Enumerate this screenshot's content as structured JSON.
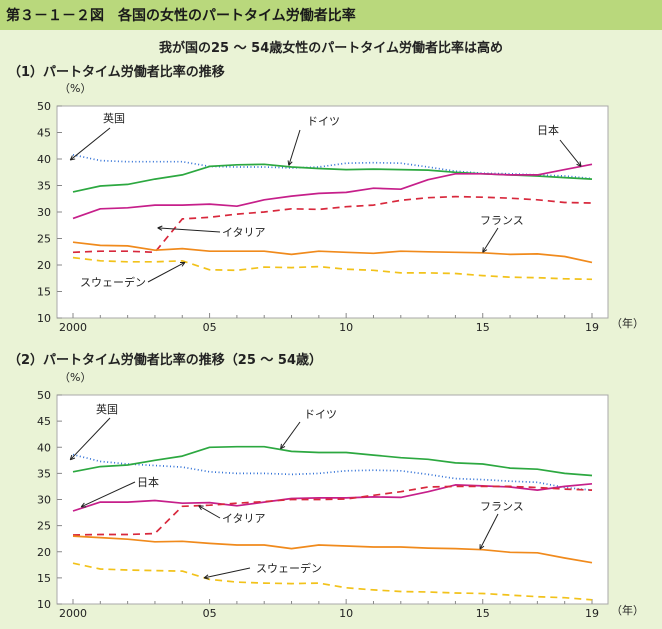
{
  "figure_title": "第３－１－２図　各国の女性のパートタイム労働者比率",
  "subtitle": "我が国の25 ～ 54歳女性のパートタイム労働者比率は高め",
  "chart_data": [
    {
      "type": "line",
      "heading": "（1）パートタイム労働者比率の推移",
      "ylabel": "（%）",
      "xlabel": "（年）",
      "ylim": [
        10,
        50
      ],
      "yticks": [
        "10",
        "15",
        "20",
        "25",
        "30",
        "35",
        "40",
        "45",
        "50"
      ],
      "xticks": [
        {
          "x": 2000,
          "label": "2000"
        },
        {
          "x": 2005,
          "label": "05"
        },
        {
          "x": 2010,
          "label": "10"
        },
        {
          "x": 2015,
          "label": "15"
        },
        {
          "x": 2019,
          "label": "19"
        }
      ],
      "x": [
        2000,
        2001,
        2002,
        2003,
        2004,
        2005,
        2006,
        2007,
        2008,
        2009,
        2010,
        2011,
        2012,
        2013,
        2014,
        2015,
        2016,
        2017,
        2018,
        2019
      ],
      "series": [
        {
          "name": "英国",
          "color": "#2e6fd6",
          "dash": "1,2.5",
          "values": [
            40.8,
            39.7,
            39.5,
            39.5,
            39.5,
            38.6,
            38.5,
            38.5,
            38.3,
            38.5,
            39.2,
            39.3,
            39.2,
            38.5,
            37.7,
            37.3,
            37.2,
            37.0,
            36.8,
            36.3
          ]
        },
        {
          "name": "ドイツ",
          "color": "#2ca840",
          "dash": "",
          "values": [
            33.8,
            34.9,
            35.2,
            36.2,
            37.0,
            38.6,
            38.9,
            39.0,
            38.5,
            38.2,
            38.0,
            38.1,
            38.0,
            37.9,
            37.5,
            37.2,
            37.0,
            36.8,
            36.5,
            36.2
          ]
        },
        {
          "name": "日本",
          "color": "#c61f8a",
          "dash": "",
          "values": [
            28.8,
            30.6,
            30.8,
            31.3,
            31.3,
            31.5,
            31.1,
            32.3,
            33.0,
            33.5,
            33.7,
            34.5,
            34.3,
            36.1,
            37.2,
            37.2,
            37.0,
            37.0,
            38.0,
            39.0
          ]
        },
        {
          "name": "イタリア",
          "color": "#d8283c",
          "dash": "7,5",
          "values": [
            22.4,
            22.6,
            22.6,
            22.4,
            28.7,
            29.0,
            29.6,
            30.0,
            30.6,
            30.5,
            31.0,
            31.3,
            32.2,
            32.7,
            32.9,
            32.8,
            32.6,
            32.3,
            31.8,
            31.7
          ]
        },
        {
          "name": "フランス",
          "color": "#f08a1c",
          "dash": "",
          "values": [
            24.3,
            23.7,
            23.6,
            22.8,
            23.1,
            22.6,
            22.6,
            22.6,
            22.0,
            22.6,
            22.4,
            22.2,
            22.6,
            22.5,
            22.4,
            22.3,
            22.0,
            22.1,
            21.6,
            20.5
          ]
        },
        {
          "name": "スウェーデン",
          "color": "#f2c21a",
          "dash": "7,5",
          "values": [
            21.4,
            20.8,
            20.6,
            20.6,
            20.8,
            19.1,
            19.0,
            19.6,
            19.5,
            19.7,
            19.2,
            19.0,
            18.5,
            18.5,
            18.4,
            18.0,
            17.7,
            17.6,
            17.4,
            17.3
          ]
        }
      ]
    },
    {
      "type": "line",
      "heading": "（2）パートタイム労働者比率の推移（25 ～ 54歳）",
      "ylabel": "（%）",
      "xlabel": "（年）",
      "ylim": [
        10,
        50
      ],
      "yticks": [
        "10",
        "15",
        "20",
        "25",
        "30",
        "35",
        "40",
        "45",
        "50"
      ],
      "xticks": [
        {
          "x": 2000,
          "label": "2000"
        },
        {
          "x": 2005,
          "label": "05"
        },
        {
          "x": 2010,
          "label": "10"
        },
        {
          "x": 2015,
          "label": "15"
        },
        {
          "x": 2019,
          "label": "19"
        }
      ],
      "x": [
        2000,
        2001,
        2002,
        2003,
        2004,
        2005,
        2006,
        2007,
        2008,
        2009,
        2010,
        2011,
        2012,
        2013,
        2014,
        2015,
        2016,
        2017,
        2018,
        2019
      ],
      "series": [
        {
          "name": "英国",
          "color": "#2e6fd6",
          "dash": "1,2.5",
          "values": [
            38.6,
            37.3,
            36.8,
            36.5,
            36.2,
            35.3,
            35.0,
            35.0,
            34.8,
            35.0,
            35.5,
            35.6,
            35.5,
            34.8,
            34.0,
            33.8,
            33.5,
            33.3,
            32.3,
            31.8
          ]
        },
        {
          "name": "ドイツ",
          "color": "#2ca840",
          "dash": "",
          "values": [
            35.3,
            36.3,
            36.6,
            37.5,
            38.3,
            40.0,
            40.1,
            40.1,
            39.2,
            39.0,
            39.0,
            38.5,
            38.0,
            37.7,
            37.0,
            36.8,
            36.0,
            35.8,
            35.0,
            34.6
          ]
        },
        {
          "name": "日本",
          "color": "#c61f8a",
          "dash": "",
          "values": [
            27.8,
            29.5,
            29.5,
            29.8,
            29.3,
            29.4,
            28.8,
            29.5,
            30.2,
            30.3,
            30.3,
            30.5,
            30.4,
            31.5,
            32.8,
            32.6,
            32.4,
            31.8,
            32.5,
            33.0
          ]
        },
        {
          "name": "イタリア",
          "color": "#d8283c",
          "dash": "7,5",
          "values": [
            23.2,
            23.3,
            23.3,
            23.5,
            28.7,
            28.9,
            29.3,
            29.6,
            30.0,
            30.0,
            30.1,
            30.8,
            31.5,
            32.4,
            32.5,
            32.5,
            32.5,
            32.3,
            32.0,
            31.8
          ]
        },
        {
          "name": "フランス",
          "color": "#f08a1c",
          "dash": "",
          "values": [
            23.0,
            22.7,
            22.4,
            21.9,
            22.0,
            21.6,
            21.3,
            21.3,
            20.6,
            21.3,
            21.1,
            20.9,
            20.9,
            20.7,
            20.6,
            20.4,
            19.9,
            19.8,
            18.8,
            17.9
          ]
        },
        {
          "name": "スウェーデン",
          "color": "#f2c21a",
          "dash": "7,5",
          "values": [
            17.8,
            16.7,
            16.5,
            16.4,
            16.3,
            14.7,
            14.2,
            14.0,
            13.9,
            14.0,
            13.1,
            12.7,
            12.4,
            12.3,
            12.1,
            12.0,
            11.7,
            11.4,
            11.2,
            10.8
          ]
        }
      ]
    }
  ]
}
